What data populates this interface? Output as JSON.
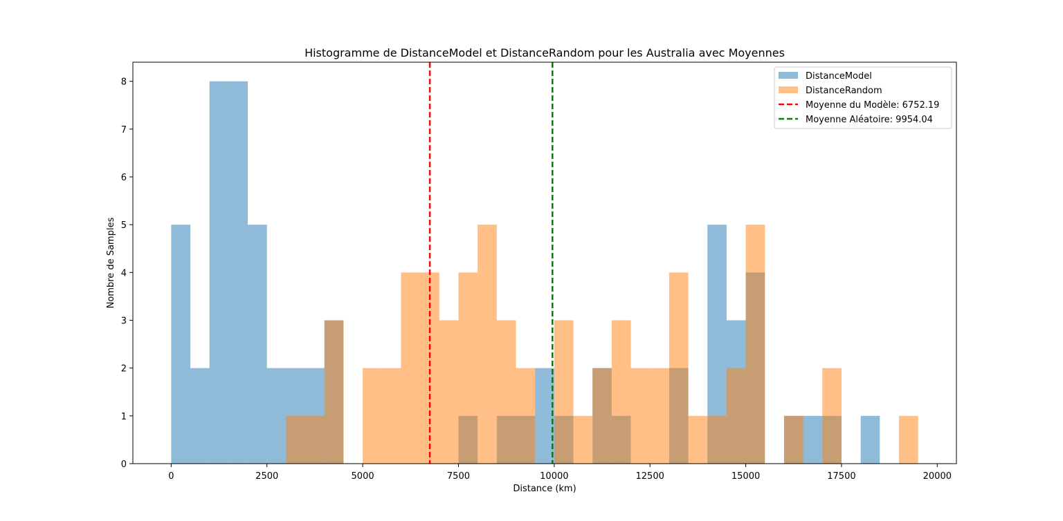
{
  "chart_data": {
    "type": "bar",
    "title": "Histogramme de DistanceModel et DistanceRandom pour les Australia avec Moyennes",
    "xlabel": "Distance (km)",
    "ylabel": "Nombre de Samples",
    "xlim": [
      -1000,
      20500
    ],
    "ylim": [
      0,
      8.4
    ],
    "xticks": [
      0,
      2500,
      5000,
      7500,
      10000,
      12500,
      15000,
      17500,
      20000
    ],
    "xtick_labels": [
      "0",
      "2500",
      "5000",
      "7500",
      "10000",
      "12500",
      "15000",
      "17500",
      "20000"
    ],
    "yticks": [
      0,
      1,
      2,
      3,
      4,
      5,
      6,
      7,
      8
    ],
    "ytick_labels": [
      "0",
      "1",
      "2",
      "3",
      "4",
      "5",
      "6",
      "7",
      "8"
    ],
    "bin_width": 500,
    "grid": false,
    "legend_position": "top-right",
    "series": [
      {
        "name": "DistanceModel",
        "color": "#1f77b4",
        "opacity": 0.5,
        "bins": [
          {
            "x": 0,
            "count": 5
          },
          {
            "x": 500,
            "count": 2
          },
          {
            "x": 1000,
            "count": 8
          },
          {
            "x": 1500,
            "count": 8
          },
          {
            "x": 2000,
            "count": 5
          },
          {
            "x": 2500,
            "count": 2
          },
          {
            "x": 3000,
            "count": 2
          },
          {
            "x": 3500,
            "count": 2
          },
          {
            "x": 4000,
            "count": 3
          },
          {
            "x": 7500,
            "count": 1
          },
          {
            "x": 8500,
            "count": 1
          },
          {
            "x": 9000,
            "count": 1
          },
          {
            "x": 9500,
            "count": 2
          },
          {
            "x": 10000,
            "count": 1
          },
          {
            "x": 11000,
            "count": 2
          },
          {
            "x": 11500,
            "count": 1
          },
          {
            "x": 13000,
            "count": 2
          },
          {
            "x": 14000,
            "count": 5
          },
          {
            "x": 14500,
            "count": 3
          },
          {
            "x": 15000,
            "count": 4
          },
          {
            "x": 16000,
            "count": 1
          },
          {
            "x": 16500,
            "count": 1
          },
          {
            "x": 17000,
            "count": 1
          },
          {
            "x": 18000,
            "count": 1
          }
        ]
      },
      {
        "name": "DistanceRandom",
        "color": "#ff7f0e",
        "opacity": 0.5,
        "bins": [
          {
            "x": 3000,
            "count": 1
          },
          {
            "x": 3500,
            "count": 1
          },
          {
            "x": 4000,
            "count": 3
          },
          {
            "x": 5000,
            "count": 2
          },
          {
            "x": 5500,
            "count": 2
          },
          {
            "x": 6000,
            "count": 4
          },
          {
            "x": 6500,
            "count": 4
          },
          {
            "x": 7000,
            "count": 3
          },
          {
            "x": 7500,
            "count": 4
          },
          {
            "x": 8000,
            "count": 5
          },
          {
            "x": 8500,
            "count": 3
          },
          {
            "x": 9000,
            "count": 2
          },
          {
            "x": 10000,
            "count": 3
          },
          {
            "x": 10500,
            "count": 1
          },
          {
            "x": 11000,
            "count": 2
          },
          {
            "x": 11500,
            "count": 3
          },
          {
            "x": 12000,
            "count": 2
          },
          {
            "x": 12500,
            "count": 2
          },
          {
            "x": 13000,
            "count": 4
          },
          {
            "x": 13500,
            "count": 1
          },
          {
            "x": 14000,
            "count": 1
          },
          {
            "x": 14500,
            "count": 2
          },
          {
            "x": 15000,
            "count": 5
          },
          {
            "x": 16000,
            "count": 1
          },
          {
            "x": 17000,
            "count": 2
          },
          {
            "x": 19000,
            "count": 1
          }
        ]
      }
    ],
    "reference_lines": [
      {
        "name": "Moyenne du Modèle: 6752.19",
        "x": 6752.19,
        "color": "#ff0000",
        "style": "dashed"
      },
      {
        "name": "Moyenne Aléatoire: 9954.04",
        "x": 9954.04,
        "color": "#008000",
        "style": "dashed"
      }
    ]
  }
}
